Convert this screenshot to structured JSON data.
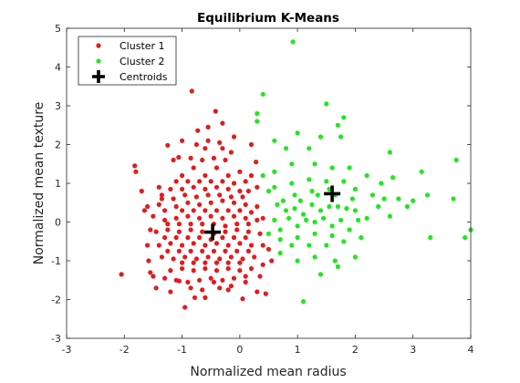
{
  "chart_data": {
    "type": "scatter",
    "title": "Equilibrium K-Means",
    "xlabel": "Normalized mean radius",
    "ylabel": "Normalized mean texture",
    "xlim": [
      -3,
      4
    ],
    "ylim": [
      -3,
      5
    ],
    "xticks": [
      "-3",
      "-2",
      "-1",
      "0",
      "1",
      "2",
      "3",
      "4"
    ],
    "yticks": [
      "-3",
      "-2",
      "-1",
      "0",
      "1",
      "2",
      "3",
      "4",
      "5"
    ],
    "grid": false,
    "legend_position": "top-left",
    "series": [
      {
        "name": "Cluster 1",
        "color": "#e41a1c",
        "points": [
          [
            -0.83,
            3.38
          ],
          [
            -0.42,
            2.86
          ],
          [
            -0.55,
            2.45
          ],
          [
            -0.3,
            2.55
          ],
          [
            -0.73,
            2.36
          ],
          [
            -1.25,
            1.98
          ],
          [
            -1.06,
            1.67
          ],
          [
            -1.82,
            1.45
          ],
          [
            -1.8,
            1.3
          ],
          [
            -2.05,
            -1.35
          ],
          [
            -1.58,
            -1.0
          ],
          [
            -1.55,
            -1.3
          ],
          [
            -1.5,
            -1.4
          ],
          [
            -1.45,
            -1.7
          ],
          [
            -1.6,
            -0.6
          ],
          [
            -1.35,
            0.7
          ],
          [
            -1.65,
            0.3
          ],
          [
            -1.7,
            0.8
          ],
          [
            -1.4,
            0.45
          ],
          [
            -1.2,
            -1.8
          ],
          [
            -1.05,
            -1.52
          ],
          [
            -0.95,
            -2.2
          ],
          [
            -0.78,
            -1.95
          ],
          [
            -0.6,
            -1.95
          ],
          [
            -0.45,
            -1.55
          ],
          [
            -0.2,
            -1.75
          ],
          [
            0.05,
            -1.98
          ],
          [
            0.1,
            -1.55
          ],
          [
            0.3,
            -1.8
          ],
          [
            0.45,
            -1.85
          ],
          [
            0.35,
            -1.4
          ],
          [
            0.55,
            -1.0
          ],
          [
            0.5,
            -0.7
          ],
          [
            0.4,
            0.1
          ],
          [
            0.28,
            1.55
          ],
          [
            0.2,
            1.2
          ],
          [
            0.3,
            0.9
          ],
          [
            -0.1,
            2.2
          ],
          [
            -0.15,
            1.8
          ],
          [
            -0.3,
            1.9
          ],
          [
            -0.6,
            1.9
          ],
          [
            -1.0,
            2.1
          ],
          [
            -1.15,
            1.6
          ],
          [
            -1.0,
            1.2
          ],
          [
            -0.8,
            1.4
          ],
          [
            -0.6,
            1.2
          ],
          [
            -0.4,
            1.4
          ],
          [
            -0.2,
            1.2
          ],
          [
            0.0,
            1.3
          ],
          [
            0.15,
            0.8
          ],
          [
            0.0,
            0.8
          ],
          [
            -0.2,
            0.85
          ],
          [
            -0.4,
            0.9
          ],
          [
            -0.6,
            0.85
          ],
          [
            -0.8,
            0.9
          ],
          [
            -1.0,
            0.85
          ],
          [
            -1.2,
            0.85
          ],
          [
            -1.4,
            0.9
          ],
          [
            -1.3,
            0.3
          ],
          [
            -1.1,
            0.4
          ],
          [
            -0.9,
            0.5
          ],
          [
            -0.7,
            0.45
          ],
          [
            -0.5,
            0.5
          ],
          [
            -0.3,
            0.55
          ],
          [
            -0.1,
            0.5
          ],
          [
            0.1,
            0.45
          ],
          [
            0.3,
            0.4
          ],
          [
            0.3,
            0.05
          ],
          [
            0.1,
            0.1
          ],
          [
            -0.1,
            0.15
          ],
          [
            -0.3,
            0.1
          ],
          [
            -0.5,
            0.15
          ],
          [
            -0.7,
            0.1
          ],
          [
            -0.9,
            0.15
          ],
          [
            -1.1,
            0.1
          ],
          [
            -1.3,
            0.05
          ],
          [
            -1.5,
            0.15
          ],
          [
            -1.45,
            -0.25
          ],
          [
            -1.25,
            -0.2
          ],
          [
            -1.05,
            -0.25
          ],
          [
            -0.85,
            -0.2
          ],
          [
            -0.65,
            -0.25
          ],
          [
            -0.45,
            -0.3
          ],
          [
            -0.25,
            -0.25
          ],
          [
            -0.05,
            -0.2
          ],
          [
            0.15,
            -0.25
          ],
          [
            0.35,
            -0.3
          ],
          [
            0.4,
            -0.6
          ],
          [
            0.2,
            -0.6
          ],
          [
            0.0,
            -0.55
          ],
          [
            -0.2,
            -0.6
          ],
          [
            -0.4,
            -0.55
          ],
          [
            -0.6,
            -0.6
          ],
          [
            -0.8,
            -0.55
          ],
          [
            -1.0,
            -0.6
          ],
          [
            -1.2,
            -0.55
          ],
          [
            -1.4,
            -0.6
          ],
          [
            -1.35,
            -0.9
          ],
          [
            -1.15,
            -0.95
          ],
          [
            -0.95,
            -0.9
          ],
          [
            -0.75,
            -0.95
          ],
          [
            -0.55,
            -0.9
          ],
          [
            -0.35,
            -0.95
          ],
          [
            -0.15,
            -0.9
          ],
          [
            0.05,
            -0.95
          ],
          [
            0.25,
            -0.9
          ],
          [
            0.4,
            -1.1
          ],
          [
            0.2,
            -1.2
          ],
          [
            0.0,
            -1.25
          ],
          [
            -0.2,
            -1.2
          ],
          [
            -0.4,
            -1.25
          ],
          [
            -0.6,
            -1.2
          ],
          [
            -0.8,
            -1.25
          ],
          [
            -1.0,
            -1.2
          ],
          [
            -1.2,
            -1.25
          ],
          [
            -1.3,
            -1.45
          ],
          [
            -1.1,
            -1.5
          ],
          [
            -0.9,
            -1.55
          ],
          [
            -0.7,
            -1.5
          ],
          [
            -0.5,
            -1.45
          ],
          [
            -0.3,
            -1.5
          ],
          [
            -0.1,
            -1.45
          ],
          [
            0.1,
            -1.4
          ],
          [
            -0.65,
            -1.75
          ],
          [
            -0.85,
            -1.7
          ],
          [
            -0.35,
            -1.7
          ],
          [
            -0.15,
            -1.65
          ],
          [
            -0.95,
            0.7
          ],
          [
            -0.75,
            0.65
          ],
          [
            -0.55,
            0.7
          ],
          [
            -0.35,
            0.7
          ],
          [
            -0.15,
            0.65
          ],
          [
            0.05,
            0.65
          ],
          [
            -1.15,
            0.6
          ],
          [
            -1.35,
            0.6
          ],
          [
            -0.85,
            -0.05
          ],
          [
            -0.65,
            -0.05
          ],
          [
            -0.45,
            -0.05
          ],
          [
            -0.25,
            -0.1
          ],
          [
            -0.05,
            -0.05
          ],
          [
            0.15,
            -0.05
          ],
          [
            -1.05,
            -0.05
          ],
          [
            -1.25,
            -0.05
          ],
          [
            -0.8,
            0.3
          ],
          [
            -0.6,
            0.3
          ],
          [
            -0.4,
            0.3
          ],
          [
            -0.2,
            0.3
          ],
          [
            0.0,
            0.3
          ],
          [
            0.2,
            0.25
          ],
          [
            -1.0,
            0.3
          ],
          [
            -0.9,
            -0.4
          ],
          [
            -0.7,
            -0.4
          ],
          [
            -0.5,
            -0.45
          ],
          [
            -0.3,
            -0.4
          ],
          [
            -0.1,
            -0.4
          ],
          [
            0.1,
            -0.4
          ],
          [
            -1.1,
            -0.4
          ],
          [
            -1.3,
            -0.4
          ],
          [
            -0.85,
            -0.75
          ],
          [
            -0.65,
            -0.75
          ],
          [
            -0.45,
            -0.75
          ],
          [
            -0.25,
            -0.75
          ],
          [
            -0.05,
            -0.75
          ],
          [
            0.15,
            -0.75
          ],
          [
            -1.05,
            -0.75
          ],
          [
            -1.25,
            -0.75
          ],
          [
            -0.8,
            -1.05
          ],
          [
            -0.6,
            -1.05
          ],
          [
            -0.4,
            -1.05
          ],
          [
            -0.2,
            -1.05
          ],
          [
            0.0,
            -1.05
          ],
          [
            -1.0,
            -1.05
          ],
          [
            -0.5,
            1.05
          ],
          [
            -0.3,
            1.05
          ],
          [
            -0.7,
            1.05
          ],
          [
            -0.1,
            1.0
          ],
          [
            -0.9,
            1.05
          ],
          [
            -1.1,
            1.05
          ],
          [
            0.1,
            1.05
          ],
          [
            -0.45,
            1.65
          ],
          [
            -0.65,
            1.6
          ],
          [
            -0.25,
            1.6
          ],
          [
            -0.85,
            1.65
          ],
          [
            -0.55,
            2.1
          ],
          [
            -0.35,
            2.05
          ],
          [
            -0.75,
            2.0
          ],
          [
            0.2,
            2.0
          ],
          [
            -1.55,
            -0.2
          ],
          [
            -1.6,
            0.4
          ]
        ]
      },
      {
        "name": "Cluster 2",
        "color": "#1ee81e",
        "points": [
          [
            0.92,
            4.65
          ],
          [
            0.4,
            3.3
          ],
          [
            0.3,
            2.8
          ],
          [
            0.3,
            2.6
          ],
          [
            1.5,
            3.05
          ],
          [
            1.8,
            2.7
          ],
          [
            1.7,
            2.5
          ],
          [
            1.75,
            2.2
          ],
          [
            1.4,
            2.2
          ],
          [
            1.0,
            2.3
          ],
          [
            0.6,
            2.1
          ],
          [
            0.8,
            1.9
          ],
          [
            1.2,
            1.9
          ],
          [
            2.6,
            1.8
          ],
          [
            3.75,
            1.6
          ],
          [
            3.15,
            1.3
          ],
          [
            2.65,
            1.15
          ],
          [
            2.2,
            1.2
          ],
          [
            1.9,
            1.4
          ],
          [
            1.6,
            1.4
          ],
          [
            1.3,
            1.5
          ],
          [
            0.9,
            1.5
          ],
          [
            0.6,
            1.3
          ],
          [
            0.4,
            1.2
          ],
          [
            0.6,
            0.9
          ],
          [
            0.9,
            1.0
          ],
          [
            1.2,
            1.1
          ],
          [
            1.5,
            1.05
          ],
          [
            1.8,
            1.05
          ],
          [
            2.0,
            0.85
          ],
          [
            2.3,
            0.7
          ],
          [
            2.5,
            0.6
          ],
          [
            2.75,
            0.6
          ],
          [
            2.9,
            0.4
          ],
          [
            3.25,
            0.7
          ],
          [
            3.7,
            0.6
          ],
          [
            3.0,
            0.55
          ],
          [
            2.6,
            0.15
          ],
          [
            2.2,
            0.1
          ],
          [
            2.0,
            0.3
          ],
          [
            1.7,
            0.4
          ],
          [
            1.4,
            0.3
          ],
          [
            1.1,
            0.2
          ],
          [
            0.8,
            0.3
          ],
          [
            0.6,
            0.05
          ],
          [
            0.5,
            -0.3
          ],
          [
            0.7,
            -0.2
          ],
          [
            1.0,
            -0.1
          ],
          [
            1.3,
            0.0
          ],
          [
            1.6,
            -0.1
          ],
          [
            1.9,
            -0.2
          ],
          [
            2.1,
            -0.4
          ],
          [
            1.8,
            -0.5
          ],
          [
            1.5,
            -0.6
          ],
          [
            1.2,
            -0.6
          ],
          [
            0.9,
            -0.6
          ],
          [
            0.7,
            -0.8
          ],
          [
            1.0,
            -1.0
          ],
          [
            1.3,
            -0.9
          ],
          [
            1.65,
            -1.0
          ],
          [
            2.0,
            -0.9
          ],
          [
            1.7,
            -1.15
          ],
          [
            1.1,
            -2.05
          ],
          [
            3.3,
            -0.4
          ],
          [
            3.9,
            -0.4
          ],
          [
            4.0,
            -0.2
          ],
          [
            0.5,
            0.8
          ],
          [
            0.75,
            0.55
          ],
          [
            1.05,
            0.55
          ],
          [
            1.35,
            0.7
          ],
          [
            1.65,
            0.7
          ],
          [
            1.95,
            0.6
          ],
          [
            0.65,
            0.45
          ],
          [
            0.95,
            0.35
          ],
          [
            1.25,
            0.45
          ],
          [
            1.55,
            0.4
          ],
          [
            1.85,
            0.35
          ],
          [
            2.4,
            0.4
          ],
          [
            0.85,
            0.1
          ],
          [
            1.15,
            0.05
          ],
          [
            1.45,
            0.1
          ],
          [
            1.75,
            0.05
          ],
          [
            2.05,
            0.05
          ],
          [
            0.7,
            -0.45
          ],
          [
            1.0,
            -0.4
          ],
          [
            1.3,
            -0.3
          ],
          [
            1.6,
            -0.35
          ],
          [
            1.4,
            -1.35
          ],
          [
            0.95,
            0.7
          ],
          [
            1.25,
            0.8
          ],
          [
            1.55,
            0.85
          ],
          [
            2.45,
            1.0
          ]
        ]
      }
    ],
    "centroids": {
      "name": "Centroids",
      "color": "#000000",
      "points": [
        [
          -0.47,
          -0.26
        ],
        [
          1.6,
          0.73
        ]
      ]
    }
  }
}
